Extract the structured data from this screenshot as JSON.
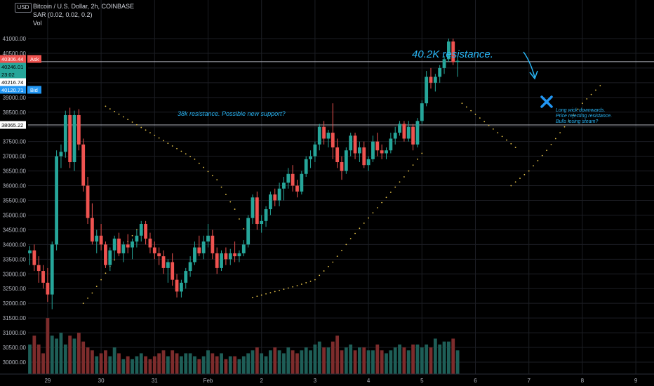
{
  "header": {
    "title": "Bitcoin / U.S. Dollar, 2h, COINBASE",
    "indicator": "SAR (0.02, 0.02, 0.2)",
    "volume_label": "Vol",
    "currency": "USD"
  },
  "colors": {
    "up": "#26a69a",
    "down": "#ef5350",
    "up_vol": "#1e5e57",
    "down_vol": "#7d2c2c",
    "sar": "#e6c34a",
    "annotation": "#29b6f6",
    "marker": "#2196f3",
    "grid": "#1c1e24",
    "hline": "#b2b5be"
  },
  "price_tags": {
    "ask": {
      "value": "40306.44",
      "label": "Ask"
    },
    "last": {
      "value": "40246.01"
    },
    "countdown": {
      "value": "23:02"
    },
    "mid": {
      "value": "40216.74"
    },
    "bid": {
      "value": "40120.71",
      "label": "Bid"
    },
    "support": {
      "value": "38065.22"
    }
  },
  "annotations": {
    "resistance_40k": "40.2K resistance.",
    "resistance_38k": "38k resistance. Possible new support?",
    "note_line1": "Long wick downwards.",
    "note_line2": "Price rejecting resistance.",
    "note_line3": "Bulls losing steam?"
  },
  "chart_data": {
    "type": "candlestick",
    "y_axis": {
      "ticks": [
        30000,
        30500,
        31000,
        31500,
        32000,
        32500,
        33000,
        33500,
        34000,
        34500,
        35000,
        35500,
        36000,
        36500,
        37000,
        37500,
        38000,
        38500,
        39000,
        39500,
        40000,
        40500,
        41000
      ],
      "tick_labels": [
        "30000.00",
        "30500.00",
        "31000.00",
        "31500.00",
        "32000.00",
        "32500.00",
        "33000.00",
        "33500.00",
        "34000.00",
        "34500.00",
        "35000.00",
        "35500.00",
        "36000.00",
        "36500.00",
        "37000.00",
        "37500.00",
        "38000.00",
        "38500.00",
        "39000.00",
        "39500.00",
        "40000.00",
        "40500.00",
        "41000.00"
      ],
      "range": [
        29700,
        41500
      ]
    },
    "x_axis": {
      "labels": [
        "29",
        "30",
        "31",
        "Feb",
        "2",
        "3",
        "4",
        "5",
        "6",
        "7",
        "8",
        "9"
      ],
      "label_bar_index": [
        4,
        16,
        28,
        40,
        52,
        64,
        76,
        88,
        100,
        112,
        124,
        136
      ]
    },
    "horizontal_lines": [
      40216.74,
      38065.22
    ],
    "candles": [
      [
        33700,
        33950,
        33300,
        33800
      ],
      [
        33800,
        34000,
        33100,
        33300
      ],
      [
        33300,
        33600,
        32700,
        33100
      ],
      [
        33100,
        33300,
        32500,
        32700
      ],
      [
        32700,
        33200,
        32050,
        32300
      ],
      [
        32300,
        34100,
        31800,
        34000
      ],
      [
        34000,
        37200,
        33800,
        37000
      ],
      [
        37000,
        37400,
        36600,
        37150
      ],
      [
        37150,
        38550,
        36950,
        38400
      ],
      [
        38400,
        38650,
        36600,
        36800
      ],
      [
        36800,
        38550,
        36500,
        38400
      ],
      [
        38400,
        38600,
        37200,
        37400
      ],
      [
        37400,
        37600,
        35800,
        36000
      ],
      [
        36000,
        36300,
        34700,
        34900
      ],
      [
        34900,
        35400,
        34000,
        34100
      ],
      [
        34100,
        34500,
        33700,
        34300
      ],
      [
        34300,
        34700,
        33800,
        34000
      ],
      [
        34000,
        34100,
        33200,
        33300
      ],
      [
        33300,
        33900,
        33100,
        33800
      ],
      [
        33800,
        34300,
        33500,
        34200
      ],
      [
        34200,
        34400,
        33600,
        33700
      ],
      [
        33700,
        34100,
        33400,
        34000
      ],
      [
        34000,
        34350,
        33700,
        33900
      ],
      [
        33900,
        34200,
        33500,
        34100
      ],
      [
        34100,
        34500,
        33900,
        34300
      ],
      [
        34300,
        34800,
        34100,
        34700
      ],
      [
        34700,
        34800,
        34000,
        34200
      ],
      [
        34200,
        34400,
        33700,
        33900
      ],
      [
        33900,
        34100,
        33500,
        33700
      ],
      [
        33700,
        33900,
        33300,
        33600
      ],
      [
        33600,
        33800,
        33000,
        33200
      ],
      [
        33200,
        33500,
        32700,
        33400
      ],
      [
        33400,
        33700,
        32600,
        32800
      ],
      [
        32800,
        33000,
        32200,
        32400
      ],
      [
        32400,
        32800,
        32200,
        32700
      ],
      [
        32700,
        33200,
        32500,
        33100
      ],
      [
        33100,
        33600,
        32900,
        33400
      ],
      [
        33400,
        34100,
        33300,
        33900
      ],
      [
        33900,
        34300,
        33600,
        33700
      ],
      [
        33700,
        34300,
        33500,
        34100
      ],
      [
        34100,
        34700,
        33900,
        34300
      ],
      [
        34300,
        34500,
        33500,
        33700
      ],
      [
        33700,
        33900,
        33000,
        33200
      ],
      [
        33200,
        33800,
        33100,
        33700
      ],
      [
        33700,
        33900,
        33300,
        33500
      ],
      [
        33500,
        33850,
        33300,
        33700
      ],
      [
        33700,
        34100,
        33400,
        33600
      ],
      [
        33600,
        33800,
        33400,
        33700
      ],
      [
        33700,
        34150,
        33600,
        34000
      ],
      [
        34000,
        35000,
        33900,
        34900
      ],
      [
        34900,
        35700,
        34700,
        35600
      ],
      [
        35600,
        35800,
        34500,
        34700
      ],
      [
        34700,
        35000,
        34400,
        34800
      ],
      [
        34800,
        35300,
        34600,
        35200
      ],
      [
        35200,
        35800,
        35000,
        35700
      ],
      [
        35700,
        35900,
        35300,
        35500
      ],
      [
        35500,
        36100,
        35300,
        35900
      ],
      [
        35900,
        36300,
        35500,
        36100
      ],
      [
        36100,
        36600,
        35900,
        36400
      ],
      [
        36400,
        36700,
        35800,
        36000
      ],
      [
        36000,
        36200,
        35600,
        35800
      ],
      [
        35800,
        36500,
        35700,
        36400
      ],
      [
        36400,
        37000,
        36300,
        36900
      ],
      [
        36900,
        37200,
        36600,
        37000
      ],
      [
        37000,
        37500,
        36800,
        37400
      ],
      [
        37400,
        38100,
        37200,
        38000
      ],
      [
        38000,
        38200,
        37400,
        37600
      ],
      [
        37600,
        37900,
        37300,
        37800
      ],
      [
        37800,
        38800,
        36900,
        37300
      ],
      [
        37300,
        37600,
        36600,
        36800
      ],
      [
        36800,
        37000,
        36200,
        36500
      ],
      [
        36500,
        37300,
        36400,
        37200
      ],
      [
        37200,
        37800,
        37000,
        37700
      ],
      [
        37700,
        37800,
        36900,
        37100
      ],
      [
        37100,
        37500,
        36800,
        37300
      ],
      [
        37300,
        37500,
        36600,
        36700
      ],
      [
        36700,
        37000,
        36500,
        36900
      ],
      [
        36900,
        37700,
        36800,
        37500
      ],
      [
        37500,
        37800,
        37000,
        37200
      ],
      [
        37200,
        37400,
        36900,
        37100
      ],
      [
        37100,
        37300,
        36900,
        37200
      ],
      [
        37200,
        37800,
        37100,
        37600
      ],
      [
        37600,
        38000,
        37400,
        37800
      ],
      [
        37800,
        38200,
        37700,
        38100
      ],
      [
        38100,
        38200,
        37500,
        37600
      ],
      [
        37600,
        38200,
        37500,
        38000
      ],
      [
        38000,
        38100,
        37200,
        37400
      ],
      [
        37400,
        38300,
        37300,
        38200
      ],
      [
        38200,
        38900,
        38100,
        38800
      ],
      [
        38800,
        39900,
        38700,
        39700
      ],
      [
        39700,
        40000,
        39300,
        39500
      ],
      [
        39500,
        39800,
        39200,
        39700
      ],
      [
        39700,
        40100,
        39500,
        40000
      ],
      [
        40000,
        40400,
        39800,
        40300
      ],
      [
        40300,
        41000,
        40200,
        40900
      ],
      [
        40900,
        41000,
        40100,
        40200
      ],
      [
        40200,
        40350,
        39700,
        40246
      ]
    ],
    "volume": {
      "range": [
        29700,
        31700
      ],
      "values": [
        30600,
        30900,
        30600,
        30300,
        31500,
        30900,
        30800,
        31000,
        30600,
        30900,
        30800,
        31000,
        30700,
        30500,
        30400,
        30200,
        30300,
        30400,
        30200,
        30500,
        30300,
        30100,
        30200,
        30100,
        30200,
        30300,
        30200,
        30100,
        30200,
        30300,
        30400,
        30200,
        30400,
        30300,
        30200,
        30300,
        30300,
        30200,
        30100,
        30200,
        30400,
        30300,
        30200,
        30300,
        30100,
        30200,
        30200,
        30100,
        30200,
        30300,
        30400,
        30500,
        30300,
        30200,
        30400,
        30500,
        30400,
        30300,
        30500,
        30400,
        30300,
        30400,
        30500,
        30400,
        30600,
        30700,
        30500,
        30500,
        30700,
        30900,
        30400,
        30500,
        30600,
        30400,
        30500,
        30500,
        30400,
        30400,
        30600,
        30400,
        30300,
        30400,
        30500,
        30600,
        30500,
        30400,
        30600,
        30600,
        30500,
        30600,
        30500,
        30800,
        30600,
        30700,
        30700,
        30800,
        30400
      ]
    },
    "sar_segments": [
      [
        [
          12,
          32000
        ],
        [
          14,
          32350
        ],
        [
          16,
          32800
        ],
        [
          18,
          33250
        ],
        [
          20,
          33700
        ],
        [
          22,
          34100
        ],
        [
          24,
          34500
        ]
      ],
      [
        [
          17,
          38700
        ],
        [
          22,
          38250
        ],
        [
          27,
          37800
        ],
        [
          32,
          37350
        ],
        [
          37,
          36900
        ],
        [
          42,
          36200
        ],
        [
          46,
          35200
        ],
        [
          49,
          34200
        ]
      ],
      [
        [
          50,
          32200
        ],
        [
          55,
          32400
        ],
        [
          60,
          32600
        ],
        [
          64,
          32800
        ],
        [
          68,
          33400
        ],
        [
          72,
          34200
        ],
        [
          76,
          34900
        ],
        [
          80,
          35600
        ],
        [
          84,
          36300
        ],
        [
          88,
          37100
        ]
      ],
      [
        [
          97,
          38800
        ],
        [
          101,
          38300
        ],
        [
          105,
          37800
        ],
        [
          109,
          37300
        ]
      ],
      [
        [
          108,
          36000
        ],
        [
          112,
          36500
        ],
        [
          116,
          37200
        ],
        [
          120,
          38000
        ],
        [
          124,
          38800
        ],
        [
          128,
          39400
        ]
      ]
    ]
  }
}
